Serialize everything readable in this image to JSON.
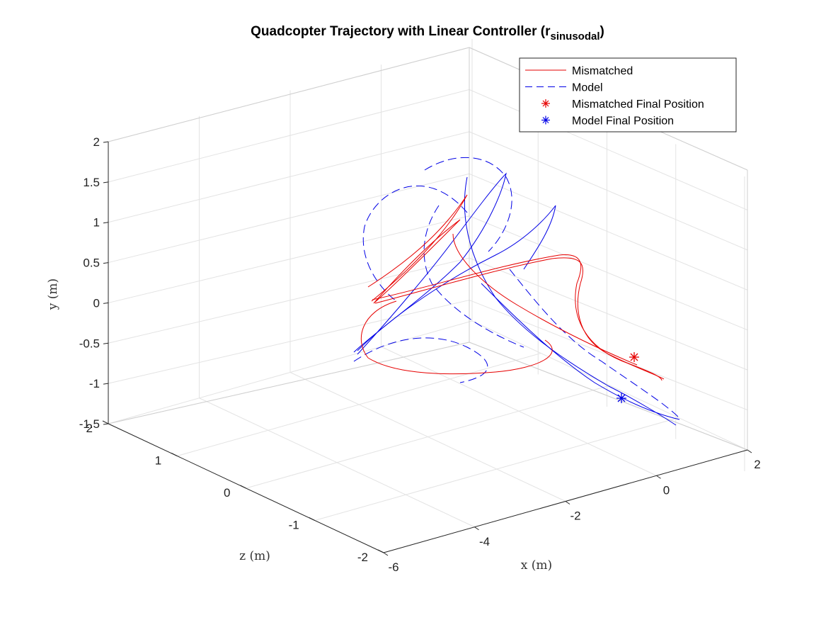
{
  "chart_data": {
    "type": "line",
    "title": {
      "main": "Quadcopter Trajectory with Linear Controller (r",
      "subscript": "sinusodal",
      "close": ")"
    },
    "xlabel": "x (m)",
    "ylabel": "y (m)",
    "zlabel": "z (m)",
    "axes": {
      "x_range": [
        -6,
        2
      ],
      "y_range": [
        -1.5,
        2
      ],
      "z_range": [
        -2,
        2
      ],
      "x_ticks": [
        "-6",
        "-4",
        "-2",
        "0",
        "2"
      ],
      "y_ticks": [
        "-1.5",
        "-1",
        "-0.5",
        "0",
        "0.5",
        "1",
        "1.5",
        "2"
      ],
      "z_ticks": [
        "-2",
        "-1",
        "0",
        "1",
        "2"
      ],
      "grid": true,
      "box": "3d-view"
    },
    "legend": {
      "placement": "top-right",
      "entries": [
        {
          "label": "Mismatched",
          "color": "#e60000",
          "style": "solid"
        },
        {
          "label": "Model",
          "color": "#0000e6",
          "style": "dashed"
        },
        {
          "label": "Mismatched Final Position",
          "color": "#e60000",
          "style": "asterisk"
        },
        {
          "label": "Model Final Position",
          "color": "#0000e6",
          "style": "asterisk"
        }
      ]
    },
    "series": [
      {
        "name": "Mismatched",
        "color": "#e60000",
        "style": "solid",
        "description_points": [
          {
            "x": -4.6,
            "y": 0.1,
            "z": 1.1
          },
          {
            "x": -2.5,
            "y": 1.3,
            "z": 1.4
          },
          {
            "x": -0.5,
            "y": 0.4,
            "z": -0.9
          },
          {
            "x": 0.8,
            "y": -0.6,
            "z": 0.0
          }
        ]
      },
      {
        "name": "Model",
        "color": "#0000e6",
        "style": "dashed",
        "description_points": [
          {
            "x": -5.0,
            "y": -0.3,
            "z": 1.4
          },
          {
            "x": -2.3,
            "y": 1.5,
            "z": 1.0
          },
          {
            "x": -0.3,
            "y": 1.0,
            "z": -1.5
          },
          {
            "x": 1.2,
            "y": -1.0,
            "z": 0.2
          }
        ]
      },
      {
        "name": "Mismatched Final Position",
        "color": "#e60000",
        "style": "asterisk",
        "point": {
          "x": 0.5,
          "y": -0.55,
          "z": 0.0
        }
      },
      {
        "name": "Model Final Position",
        "color": "#0000e6",
        "style": "asterisk",
        "point": {
          "x": 0.1,
          "y": -1.0,
          "z": 0.0
        }
      }
    ]
  }
}
